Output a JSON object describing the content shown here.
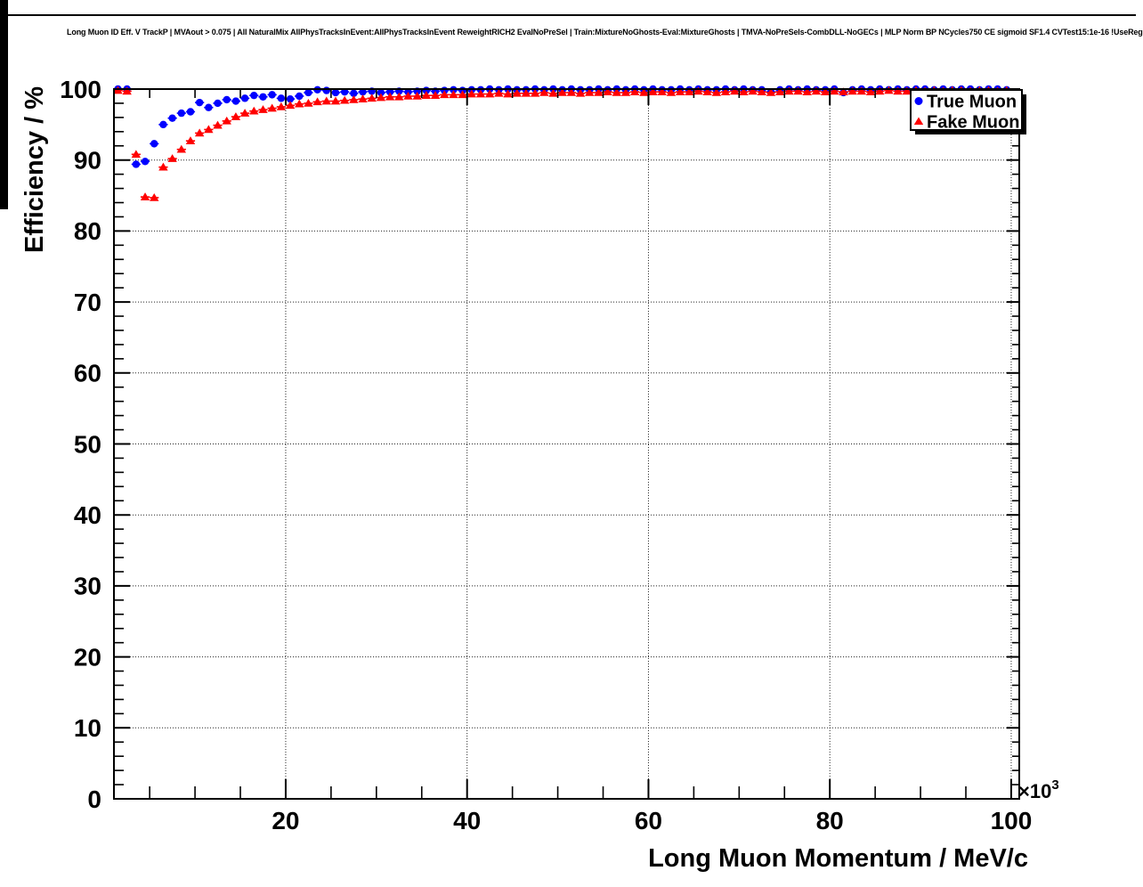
{
  "header": {
    "title": "Long Muon ID Eff. V TrackP | MVAout > 0.075 | All NaturalMix AllPhysTracksInEvent:AllPhysTracksInEvent ReweightRICH2 EvalNoPreSel | Train:MixtureNoGhosts-Eval:MixtureGhosts | TMVA-NoPreSels-CombDLL-NoGECs | MLP Norm BP NCycles750 CE sigmoid SF1.4 CVTest15:1e-16 !UseReg"
  },
  "chart_data": {
    "type": "scatter",
    "title": "Long Muon ID Eff. V TrackP | MVAout > 0.075 | All NaturalMix AllPhysTracksInEvent:AllPhysTracksInEvent ReweightRICH2 EvalNoPreSel | Train:MixtureNoGhosts-Eval:MixtureGhosts | TMVA-NoPreSels-CombDLL-NoGECs | MLP Norm BP NCycles750 CE sigmoid SF1.4 CVTest15:1e-16 !UseReg",
    "xlabel": "Long Muon Momentum / MeV/c",
    "ylabel": "Efficiency / %",
    "x_scale_prefix": "×10",
    "x_scale_exponent": "3",
    "grid": true,
    "x_axis": {
      "min": 1,
      "max": 101,
      "unit": "10^3 MeV/c",
      "major_ticks": [
        20,
        40,
        60,
        80,
        100
      ],
      "minor_tick_step": 5
    },
    "y_axis": {
      "min": 0,
      "max": 100,
      "major_ticks": [
        0,
        10,
        20,
        30,
        40,
        50,
        60,
        70,
        80,
        90,
        100
      ],
      "minor_tick_step": 2
    },
    "legend": {
      "position": "top-right",
      "entries": [
        {
          "label": "True Muon",
          "marker": "circle",
          "color": "#0000ff"
        },
        {
          "label": "Fake Muon",
          "marker": "triangle",
          "color": "#ff0000"
        }
      ]
    },
    "x": [
      1.5,
      2.5,
      3.5,
      4.5,
      5.5,
      6.5,
      7.5,
      8.5,
      9.5,
      10.5,
      11.5,
      12.5,
      13.5,
      14.5,
      15.5,
      16.5,
      17.5,
      18.5,
      19.5,
      20.5,
      21.5,
      22.5,
      23.5,
      24.5,
      25.5,
      26.5,
      27.5,
      28.5,
      29.5,
      30.5,
      31.5,
      32.5,
      33.5,
      34.5,
      35.5,
      36.5,
      37.5,
      38.5,
      39.5,
      40.5,
      41.5,
      42.5,
      43.5,
      44.5,
      45.5,
      46.5,
      47.5,
      48.5,
      49.5,
      50.5,
      51.5,
      52.5,
      53.5,
      54.5,
      55.5,
      56.5,
      57.5,
      58.5,
      59.5,
      60.5,
      61.5,
      62.5,
      63.5,
      64.5,
      65.5,
      66.5,
      67.5,
      68.5,
      69.5,
      70.5,
      71.5,
      72.5,
      73.5,
      74.5,
      75.5,
      76.5,
      77.5,
      78.5,
      79.5,
      80.5,
      81.5,
      82.5,
      83.5,
      84.5,
      85.5,
      86.5,
      87.5,
      88.5,
      89.5,
      90.5,
      91.5,
      92.5,
      93.5,
      94.5,
      95.5,
      96.5,
      97.5,
      98.5,
      99.5
    ],
    "series": [
      {
        "name": "True Muon",
        "marker": "circle",
        "color": "#0000ff",
        "values": [
          100,
          100,
          89.4,
          89.8,
          92.3,
          95,
          95.9,
          96.6,
          96.8,
          98.1,
          97.4,
          98,
          98.5,
          98.3,
          98.7,
          99.1,
          98.9,
          99.2,
          98.7,
          98.6,
          99,
          99.5,
          99.9,
          99.8,
          99.5,
          99.6,
          99.4,
          99.6,
          99.7,
          99.5,
          99.6,
          99.7,
          99.6,
          99.7,
          99.8,
          99.7,
          99.8,
          99.9,
          99.8,
          99.9,
          99.9,
          100,
          99.9,
          100,
          99.9,
          99.9,
          100,
          99.9,
          100,
          99.9,
          100,
          99.9,
          99.9,
          100,
          99.9,
          100,
          99.9,
          100,
          99.9,
          100,
          99.9,
          99.9,
          100,
          99.9,
          100,
          99.9,
          99.9,
          100,
          99.9,
          100,
          99.9,
          99.9,
          99.6,
          99.9,
          100,
          99.9,
          100,
          99.9,
          99.9,
          100,
          99.5,
          99.9,
          100,
          99.9,
          100,
          99.9,
          100,
          99.9,
          100,
          100,
          99.9,
          100,
          99.9,
          100,
          100,
          99.9,
          100,
          100,
          99.9
        ]
      },
      {
        "name": "Fake Muon",
        "marker": "triangle",
        "color": "#ff0000",
        "values": [
          99.8,
          99.7,
          90.8,
          84.8,
          84.7,
          89,
          90.2,
          91.5,
          92.7,
          93.8,
          94.3,
          94.9,
          95.5,
          96.1,
          96.6,
          96.9,
          97.1,
          97.3,
          97.5,
          97.7,
          97.9,
          98,
          98.2,
          98.3,
          98.3,
          98.4,
          98.5,
          98.6,
          98.7,
          98.8,
          98.9,
          98.9,
          99,
          99,
          99.1,
          99.1,
          99.2,
          99.2,
          99.2,
          99.3,
          99.3,
          99.3,
          99.4,
          99.3,
          99.4,
          99.4,
          99.4,
          99.5,
          99.4,
          99.5,
          99.5,
          99.4,
          99.5,
          99.5,
          99.6,
          99.5,
          99.5,
          99.6,
          99.5,
          99.6,
          99.6,
          99.5,
          99.6,
          99.6,
          99.7,
          99.6,
          99.5,
          99.6,
          99.7,
          99.6,
          99.7,
          99.6,
          99.5,
          99.6,
          99.7,
          99.7,
          99.6,
          99.7,
          99.6,
          99.7,
          99.6,
          99.7,
          99.7,
          99.6,
          99.7,
          99.8,
          99.7,
          99.7,
          99.8,
          99.7,
          99.8,
          99.7,
          99.8,
          99.8,
          99.7,
          99.8,
          99.8,
          99.7,
          99.8
        ]
      }
    ]
  }
}
